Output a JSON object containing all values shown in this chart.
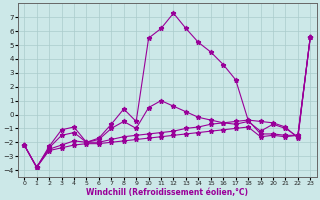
{
  "xlabel": "Windchill (Refroidissement éolien,°C)",
  "background_color": "#cce8e8",
  "grid_color": "#aacccc",
  "line_color": "#990099",
  "xlim": [
    -0.5,
    23.5
  ],
  "ylim": [
    -4.5,
    8.0
  ],
  "xticks": [
    0,
    1,
    2,
    3,
    4,
    5,
    6,
    7,
    8,
    9,
    10,
    11,
    12,
    13,
    14,
    15,
    16,
    17,
    18,
    19,
    20,
    21,
    22,
    23
  ],
  "yticks": [
    -4,
    -3,
    -2,
    -1,
    0,
    1,
    2,
    3,
    4,
    5,
    6,
    7
  ],
  "s1": [
    -2.2,
    -3.8,
    -2.6,
    -2.4,
    -2.2,
    -2.1,
    -2.1,
    -2.0,
    -1.9,
    -1.8,
    -1.7,
    -1.6,
    -1.5,
    -1.4,
    -1.3,
    -1.2,
    -1.1,
    -1.0,
    -0.9,
    -1.6,
    -1.5,
    -1.6,
    -1.5,
    5.6
  ],
  "s2": [
    -2.2,
    -3.8,
    -2.5,
    -2.2,
    -1.9,
    -2.0,
    -2.0,
    -1.8,
    -1.6,
    -1.5,
    -1.4,
    -1.3,
    -1.2,
    -1.0,
    -0.9,
    -0.7,
    -0.6,
    -0.5,
    -0.4,
    -1.4,
    -1.4,
    -1.5,
    -1.5,
    5.6
  ],
  "s3": [
    -2.2,
    -3.8,
    -2.4,
    -1.5,
    -1.3,
    -2.0,
    -1.8,
    -1.0,
    -0.5,
    -1.0,
    0.5,
    1.0,
    0.6,
    0.2,
    -0.2,
    -0.4,
    -0.6,
    -0.7,
    -0.5,
    -1.2,
    -0.7,
    -1.0,
    -1.6,
    5.6
  ],
  "s4": [
    -2.2,
    -3.8,
    -2.3,
    -1.1,
    -0.9,
    -2.0,
    -1.7,
    -0.7,
    0.4,
    -0.5,
    5.5,
    6.2,
    7.3,
    6.2,
    5.2,
    4.5,
    3.6,
    2.5,
    -0.4,
    -0.5,
    -0.6,
    -0.9,
    -1.7,
    5.6
  ]
}
